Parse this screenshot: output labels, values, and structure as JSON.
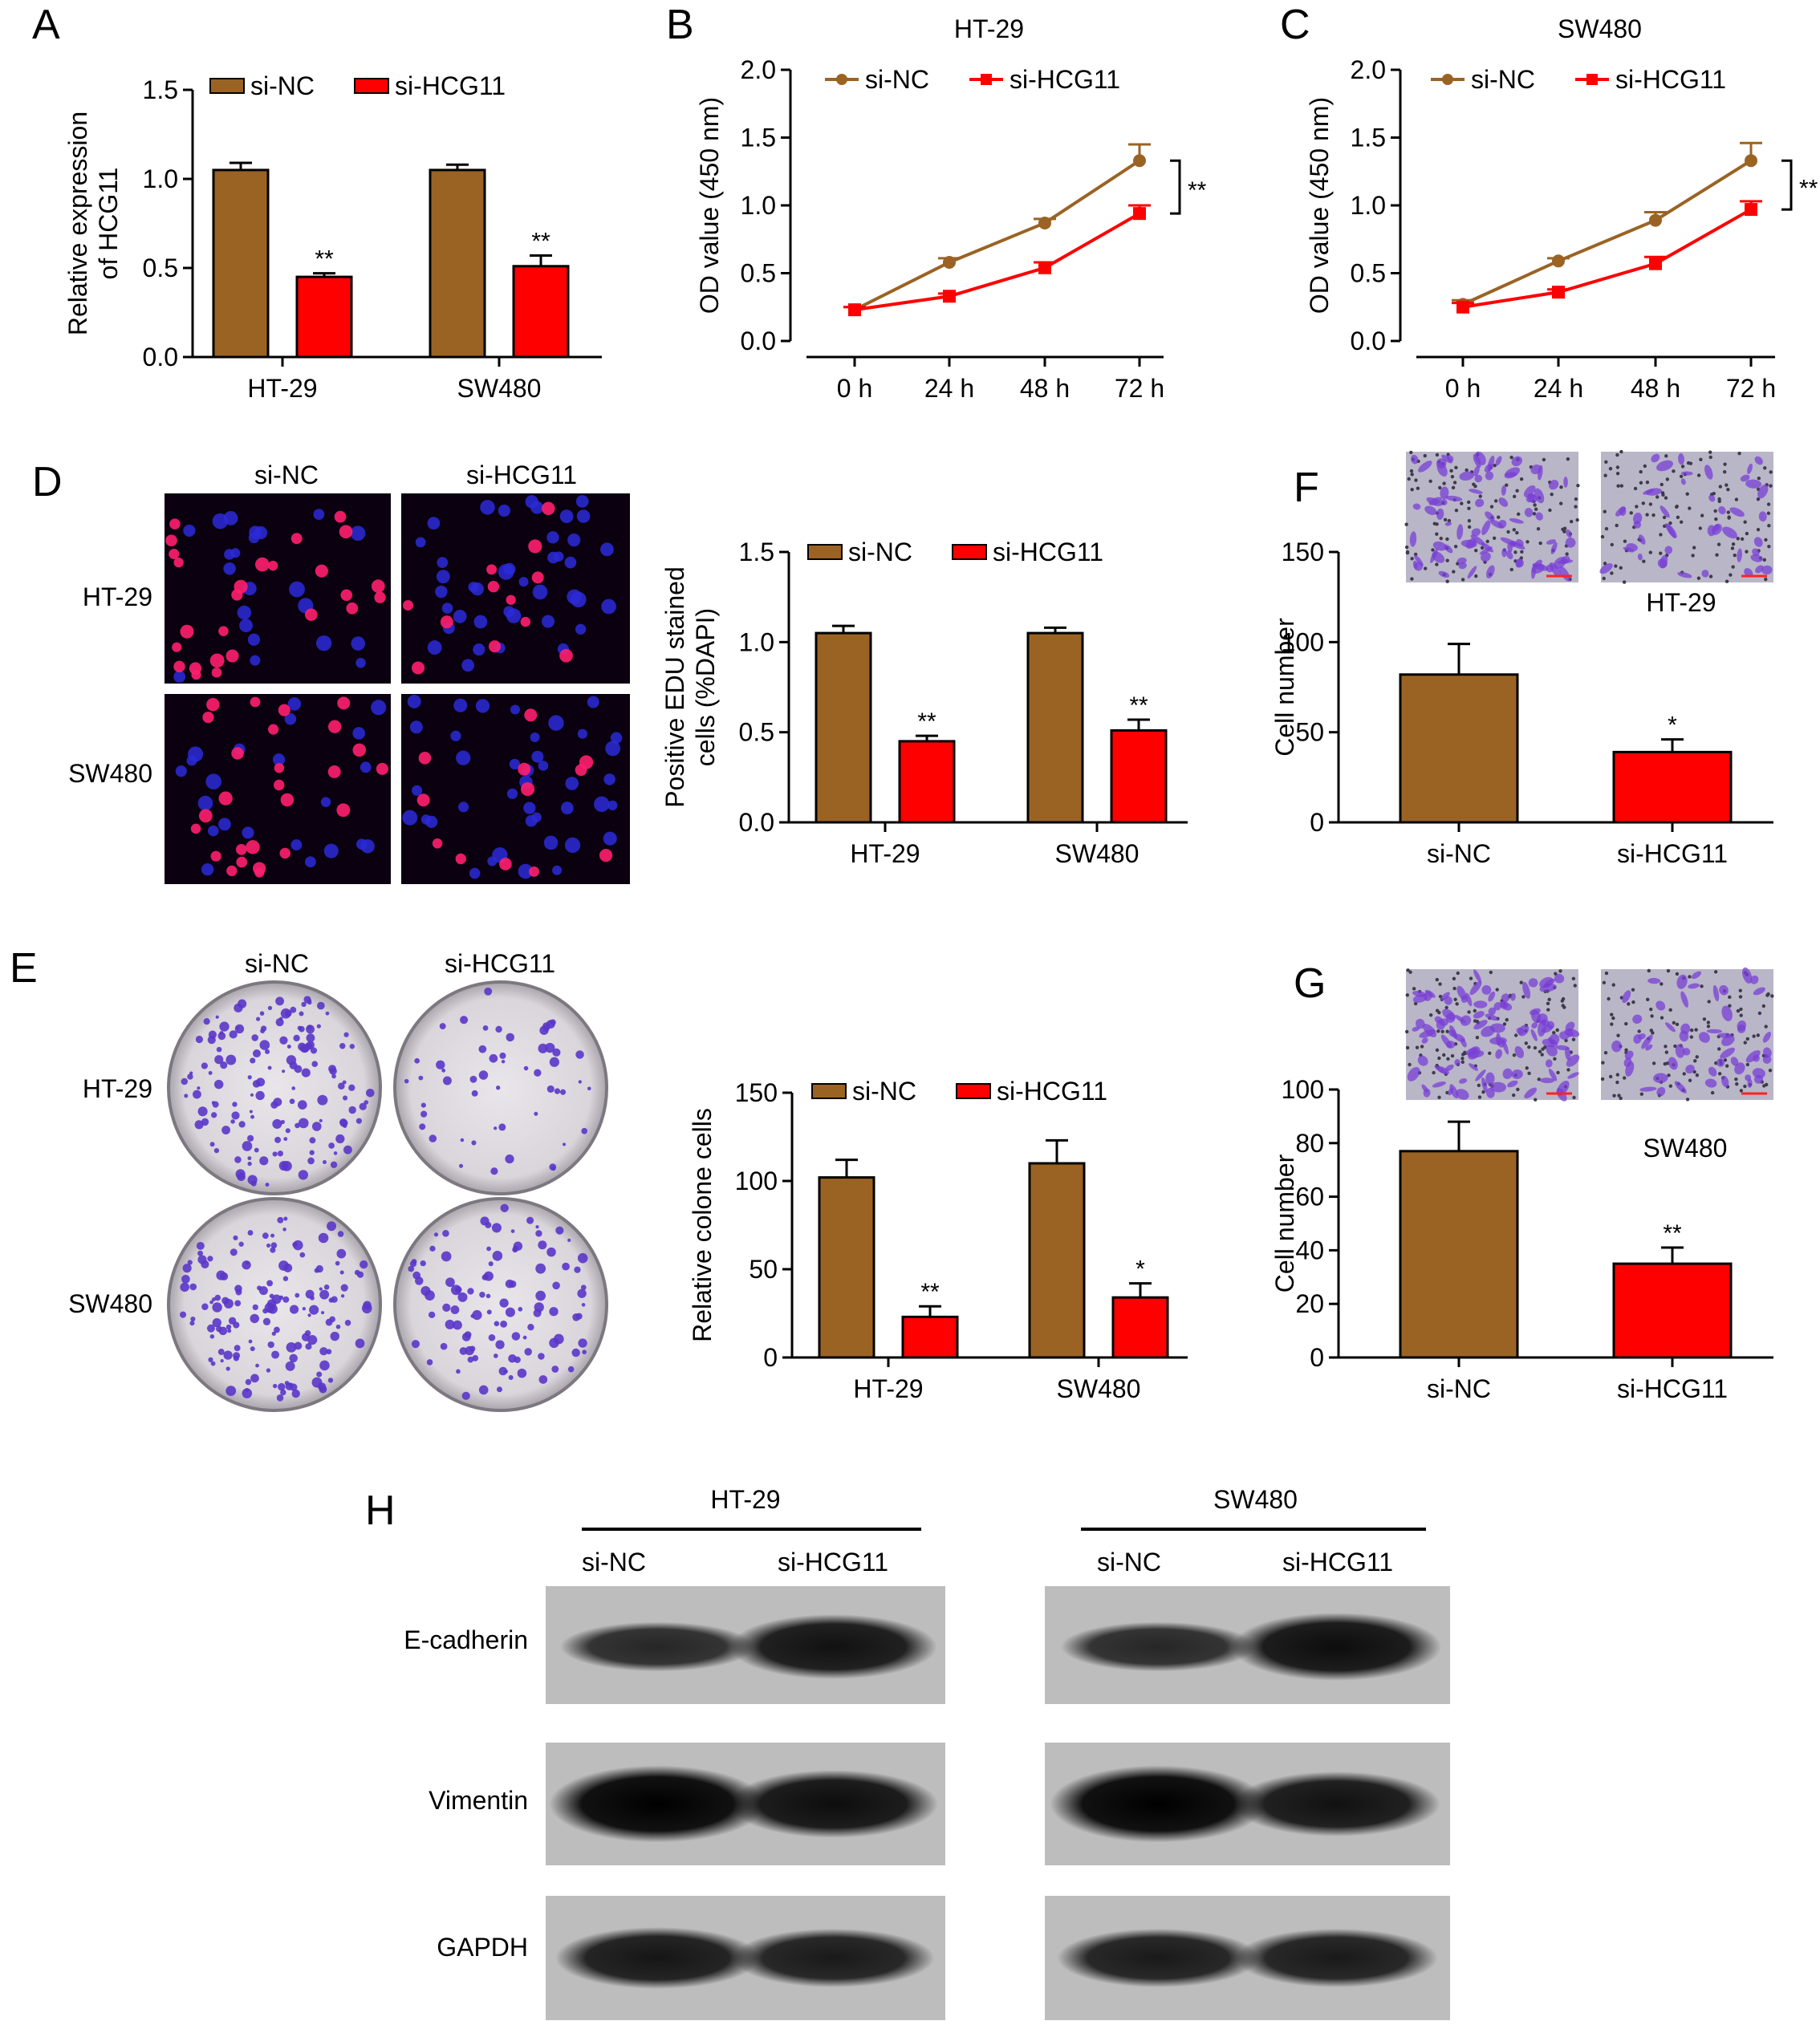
{
  "colors": {
    "si_NC": "#9A6324",
    "si_HCG11": "#FF0000",
    "axis": "#000000"
  },
  "panel_letters": [
    "A",
    "B",
    "C",
    "D",
    "E",
    "F",
    "G",
    "H"
  ],
  "legend": {
    "si_NC": "si-NC",
    "si_HCG11": "si-HCG11"
  },
  "chart_data": [
    {
      "panel": "A",
      "type": "bar",
      "ylabel": [
        "Relative expression",
        "of HCG11"
      ],
      "ylim": [
        0,
        1.5
      ],
      "yticks": [
        "0.0",
        "0.5",
        "1.0",
        "1.5"
      ],
      "categories": [
        "HT-29",
        "SW480"
      ],
      "series": [
        {
          "name": "si-NC",
          "values": [
            1.05,
            1.05
          ],
          "errors": [
            0.04,
            0.03
          ]
        },
        {
          "name": "si-HCG11",
          "values": [
            0.45,
            0.51
          ],
          "errors": [
            0.02,
            0.06
          ]
        }
      ],
      "significance": [
        "**",
        "**"
      ],
      "legend_position": "top"
    },
    {
      "panel": "B",
      "type": "line",
      "title": "HT-29",
      "ylabel": "OD value (450 nm)",
      "ylim": [
        0,
        2.0
      ],
      "yticks": [
        "0.0",
        "0.5",
        "1.0",
        "1.5",
        "2.0"
      ],
      "x": [
        "0 h",
        "24 h",
        "48 h",
        "72 h"
      ],
      "series": [
        {
          "name": "si-NC",
          "values": [
            0.23,
            0.58,
            0.87,
            1.33
          ],
          "errors": [
            0.02,
            0.03,
            0.03,
            0.12
          ]
        },
        {
          "name": "si-HCG11",
          "values": [
            0.23,
            0.33,
            0.54,
            0.94
          ],
          "errors": [
            0.02,
            0.02,
            0.04,
            0.06
          ]
        }
      ],
      "significance": "**",
      "legend_position": "top"
    },
    {
      "panel": "C",
      "type": "line",
      "title": "SW480",
      "ylabel": "OD value (450 nm)",
      "ylim": [
        0,
        2.0
      ],
      "yticks": [
        "0.0",
        "0.5",
        "1.0",
        "1.5",
        "2.0"
      ],
      "x": [
        "0 h",
        "24 h",
        "48 h",
        "72 h"
      ],
      "series": [
        {
          "name": "si-NC",
          "values": [
            0.27,
            0.59,
            0.89,
            1.33
          ],
          "errors": [
            0.03,
            0.02,
            0.06,
            0.13
          ]
        },
        {
          "name": "si-HCG11",
          "values": [
            0.25,
            0.36,
            0.57,
            0.97
          ],
          "errors": [
            0.03,
            0.02,
            0.05,
            0.06
          ]
        }
      ],
      "significance": "**",
      "legend_position": "top"
    },
    {
      "panel": "D",
      "type": "bar",
      "ylabel": [
        "Positive EDU stained",
        "cells (%DAPI)"
      ],
      "ylim": [
        0,
        1.5
      ],
      "yticks": [
        "0.0",
        "0.5",
        "1.0",
        "1.5"
      ],
      "categories": [
        "HT-29",
        "SW480"
      ],
      "series": [
        {
          "name": "si-NC",
          "values": [
            1.05,
            1.05
          ],
          "errors": [
            0.04,
            0.03
          ]
        },
        {
          "name": "si-HCG11",
          "values": [
            0.45,
            0.51
          ],
          "errors": [
            0.03,
            0.06
          ]
        }
      ],
      "significance": [
        "**",
        "**"
      ],
      "legend_position": "top"
    },
    {
      "panel": "E",
      "type": "bar",
      "ylabel": "Relative colone cells",
      "ylim": [
        0,
        150
      ],
      "yticks": [
        "0",
        "50",
        "100",
        "150"
      ],
      "categories": [
        "HT-29",
        "SW480"
      ],
      "series": [
        {
          "name": "si-NC",
          "values": [
            102,
            110
          ],
          "errors": [
            10,
            13
          ]
        },
        {
          "name": "si-HCG11",
          "values": [
            23,
            34
          ],
          "errors": [
            6,
            8
          ]
        }
      ],
      "significance": [
        "**",
        "*"
      ],
      "legend_position": "top"
    },
    {
      "panel": "F",
      "type": "bar",
      "ylabel": "Cell number",
      "ylim": [
        0,
        150
      ],
      "yticks": [
        "0",
        "50",
        "100",
        "150"
      ],
      "categories": [
        "si-NC",
        "si-HCG11"
      ],
      "values": [
        82,
        39
      ],
      "errors": [
        17,
        7
      ],
      "significance": "*",
      "cell_line": "HT-29"
    },
    {
      "panel": "G",
      "type": "bar",
      "ylabel": "Cell number",
      "ylim": [
        0,
        100
      ],
      "yticks": [
        "0",
        "20",
        "40",
        "60",
        "80",
        "100"
      ],
      "categories": [
        "si-NC",
        "si-HCG11"
      ],
      "values": [
        77,
        35
      ],
      "errors": [
        11,
        6
      ],
      "significance": "**",
      "cell_line": "SW480"
    }
  ],
  "panel_D_images": {
    "columns": [
      "si-NC",
      "si-HCG11"
    ],
    "rows": [
      "HT-29",
      "SW480"
    ]
  },
  "panel_E_images": {
    "columns": [
      "si-NC",
      "si-HCG11"
    ],
    "rows": [
      "HT-29",
      "SW480"
    ]
  },
  "western_blot": {
    "groups": [
      "HT-29",
      "SW480"
    ],
    "lanes": [
      "si-NC",
      "si-HCG11"
    ],
    "proteins": [
      "E-cadherin",
      "Vimentin",
      "GAPDH"
    ],
    "band_intensity": [
      [
        [
          0.55,
          0.8
        ],
        [
          0.55,
          0.85
        ]
      ],
      [
        [
          1.0,
          0.85
        ],
        [
          1.0,
          0.8
        ]
      ],
      [
        [
          0.75,
          0.7
        ],
        [
          0.7,
          0.7
        ]
      ]
    ]
  }
}
